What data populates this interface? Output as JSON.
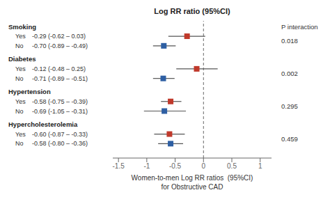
{
  "chart_data": {
    "type": "forest",
    "title": "Log RR ratio (95%CI)",
    "xlabel": "Women-to-men Log RR ratios  (95%CI)\nfor Obstructive CAD",
    "p_interaction_label": "P interaction",
    "xlim": [
      -1.6,
      1.2
    ],
    "xticks": [
      -1.5,
      -1,
      -0.5,
      0,
      0.5,
      1
    ],
    "ref_line_x": 0,
    "groups": [
      {
        "header": "Smoking",
        "p_value": "0.018",
        "rows": [
          {
            "label": "Yes",
            "ci_text": "-0.29 (-0.62 – 0.03)",
            "value": -0.29,
            "ci_low": -0.62,
            "ci_high": 0.03,
            "color": "#c0392b"
          },
          {
            "label": "No",
            "ci_text": "-0.70 (-0.89 – -0.49)",
            "value": -0.7,
            "ci_low": -0.89,
            "ci_high": -0.49,
            "color": "#2e5fa3"
          }
        ]
      },
      {
        "header": "Diabetes",
        "p_value": "0.002",
        "rows": [
          {
            "label": "Yes",
            "ci_text": "-0.12 (-0.48 – 0.25)",
            "value": -0.12,
            "ci_low": -0.48,
            "ci_high": 0.25,
            "color": "#c0392b"
          },
          {
            "label": "No",
            "ci_text": "-0.71 (-0.89 – -0.51)",
            "value": -0.71,
            "ci_low": -0.89,
            "ci_high": -0.51,
            "color": "#2e5fa3"
          }
        ]
      },
      {
        "header": "Hypertension",
        "p_value": "0.295",
        "rows": [
          {
            "label": "Yes",
            "ci_text": "-0.58 (-0.75 – -0.39)",
            "value": -0.58,
            "ci_low": -0.75,
            "ci_high": -0.39,
            "color": "#c0392b"
          },
          {
            "label": "No",
            "ci_text": "-0.69 (-1.05 – -0.31)",
            "value": -0.69,
            "ci_low": -1.05,
            "ci_high": -0.31,
            "color": "#2e5fa3"
          }
        ]
      },
      {
        "header": "Hypercholesterolemia",
        "p_value": "0.459",
        "rows": [
          {
            "label": "Yes",
            "ci_text": "-0.60 (-0.87 – -0.33)",
            "value": -0.6,
            "ci_low": -0.87,
            "ci_high": -0.33,
            "color": "#c0392b"
          },
          {
            "label": "No",
            "ci_text": "-0.58 (-0.80 – -0.36)",
            "value": -0.58,
            "ci_low": -0.8,
            "ci_high": -0.36,
            "color": "#2e5fa3"
          }
        ]
      }
    ]
  }
}
